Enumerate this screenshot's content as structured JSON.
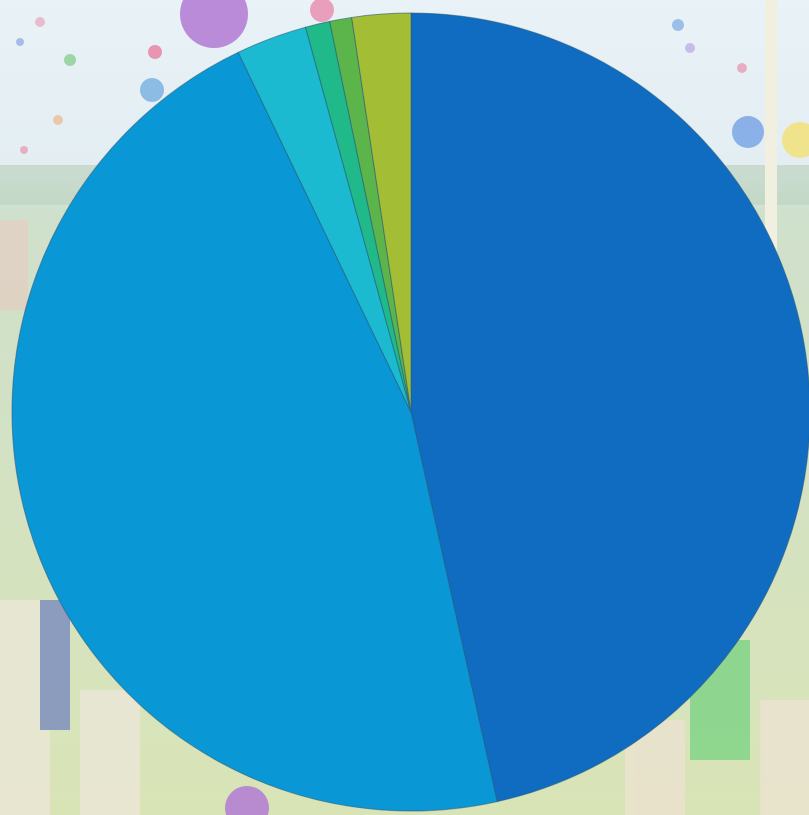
{
  "background": {
    "description_icon": "festival-crowd-balloons-photo",
    "sky_color": "#e3eef2",
    "field_color": "#d6e2b0"
  },
  "chart_data": {
    "type": "pie",
    "title": "",
    "start_angle_deg": 0,
    "direction": "clockwise",
    "slices": [
      {
        "value": 47.0,
        "color": "#0f6cc0"
      },
      {
        "value": 46.8,
        "color": "#0a97d6"
      },
      {
        "value": 2.9,
        "color": "#1cbad0"
      },
      {
        "value": 1.0,
        "color": "#1fb98a"
      },
      {
        "value": 0.9,
        "color": "#5cb54a"
      },
      {
        "value": 2.4,
        "color": "#a3bd34"
      }
    ],
    "edge_color": "#2a5a7a"
  }
}
